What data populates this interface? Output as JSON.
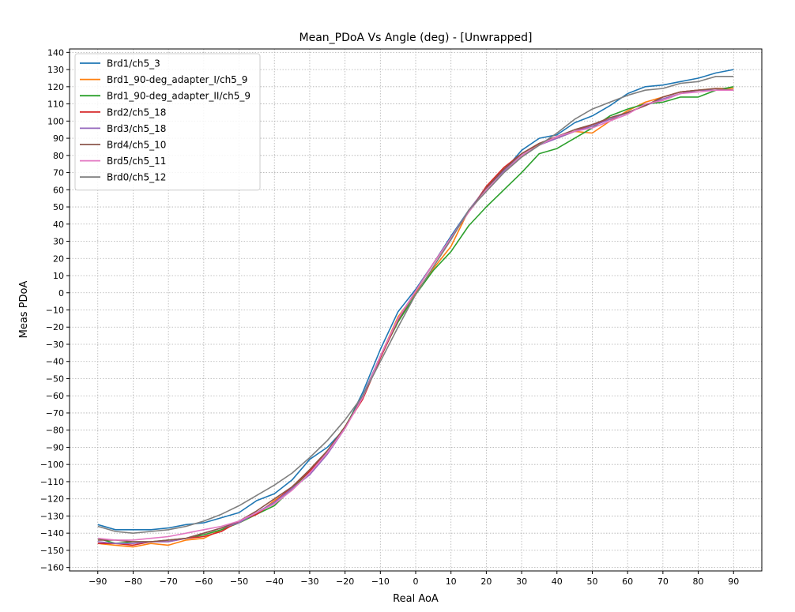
{
  "chart_data": {
    "type": "line",
    "title": "Mean_PDoA Vs Angle (deg)  - [Unwrapped]",
    "xlabel": "Real AoA",
    "ylabel": "Meas PDoA",
    "xlim": [
      -98,
      98
    ],
    "ylim": [
      -162,
      142
    ],
    "xticks": [
      -90,
      -80,
      -70,
      -60,
      -50,
      -40,
      -30,
      -20,
      -10,
      0,
      10,
      20,
      30,
      40,
      50,
      60,
      70,
      80,
      90
    ],
    "yticks": [
      140,
      130,
      120,
      110,
      100,
      90,
      80,
      70,
      60,
      50,
      40,
      30,
      20,
      10,
      0,
      -10,
      -20,
      -30,
      -40,
      -50,
      -60,
      -70,
      -80,
      -90,
      -100,
      -110,
      -120,
      -130,
      -140,
      -150,
      -160
    ],
    "xtick_labels": [
      "−90",
      "−80",
      "−70",
      "−60",
      "−50",
      "−40",
      "−30",
      "−20",
      "−10",
      "0",
      "10",
      "20",
      "30",
      "40",
      "50",
      "60",
      "70",
      "80",
      "90"
    ],
    "ytick_labels": [
      "140",
      "130",
      "120",
      "110",
      "100",
      "90",
      "80",
      "70",
      "60",
      "50",
      "40",
      "30",
      "20",
      "10",
      "0",
      "−10",
      "−20",
      "−30",
      "−40",
      "−50",
      "−60",
      "−70",
      "−80",
      "−90",
      "−100",
      "−110",
      "−120",
      "−130",
      "−140",
      "−150",
      "−160"
    ],
    "grid": true,
    "legend_position": "top-left",
    "x": [
      -90,
      -85,
      -80,
      -75,
      -70,
      -65,
      -60,
      -55,
      -50,
      -45,
      -40,
      -35,
      -30,
      -25,
      -20,
      -15,
      -10,
      -5,
      0,
      5,
      10,
      15,
      20,
      25,
      30,
      35,
      40,
      45,
      50,
      55,
      60,
      65,
      70,
      75,
      80,
      85,
      90
    ],
    "series": [
      {
        "name": "Brd1/ch5_3",
        "color": "#1f77b4",
        "values": [
          -135,
          -138,
          -138,
          -138,
          -137,
          -135,
          -134,
          -131,
          -128,
          -121,
          -117,
          -109,
          -97,
          -90,
          -79,
          -58,
          -33,
          -11,
          2,
          17,
          33,
          48,
          61,
          71,
          83,
          90,
          92,
          99,
          103,
          109,
          116,
          120,
          121,
          123,
          125,
          128,
          130
        ]
      },
      {
        "name": "Brd1_90-deg_adapter_I/ch5_9",
        "color": "#ff7f0e",
        "values": [
          -146,
          -147,
          -148,
          -146,
          -147,
          -144,
          -143,
          -138,
          -134,
          -129,
          -121,
          -114,
          -103,
          -92,
          -78,
          -61,
          -37,
          -14,
          0,
          14,
          27,
          48,
          61,
          72,
          79,
          87,
          90,
          94,
          93,
          100,
          106,
          111,
          114,
          117,
          118,
          119,
          119
        ]
      },
      {
        "name": "Brd1_90-deg_adapter_II/ch5_9",
        "color": "#2ca02c",
        "values": [
          -143,
          -146,
          -145,
          -145,
          -144,
          -143,
          -141,
          -138,
          -134,
          -129,
          -124,
          -114,
          -104,
          -92,
          -78,
          -60,
          -37,
          -17,
          -1,
          13,
          24,
          39,
          50,
          60,
          70,
          81,
          84,
          90,
          96,
          103,
          107,
          110,
          111,
          114,
          114,
          118,
          120
        ]
      },
      {
        "name": "Brd2/ch5_18",
        "color": "#d62728",
        "values": [
          -146,
          -146,
          -147,
          -145,
          -145,
          -143,
          -142,
          -139,
          -133,
          -129,
          -122,
          -113,
          -104,
          -93,
          -78,
          -62,
          -38,
          -16,
          1,
          17,
          32,
          47,
          62,
          73,
          81,
          87,
          91,
          94,
          98,
          101,
          105,
          109,
          114,
          117,
          118,
          118,
          118
        ]
      },
      {
        "name": "Brd3/ch5_18",
        "color": "#9467bd",
        "values": [
          -145,
          -146,
          -146,
          -145,
          -145,
          -143,
          -140,
          -137,
          -134,
          -128,
          -122,
          -114,
          -106,
          -94,
          -79,
          -60,
          -37,
          -15,
          1,
          17,
          32,
          48,
          61,
          71,
          80,
          86,
          90,
          94,
          97,
          101,
          105,
          109,
          113,
          116,
          118,
          118,
          118
        ]
      },
      {
        "name": "Brd4/ch5_10",
        "color": "#8c564b",
        "values": [
          -144,
          -144,
          -145,
          -145,
          -144,
          -143,
          -140,
          -137,
          -133,
          -127,
          -120,
          -113,
          -103,
          -92,
          -78,
          -61,
          -37,
          -16,
          1,
          17,
          32,
          47,
          61,
          72,
          81,
          87,
          91,
          95,
          98,
          102,
          105,
          109,
          114,
          117,
          118,
          119,
          118
        ]
      },
      {
        "name": "Brd5/ch5_11",
        "color": "#e377c2",
        "values": [
          -143,
          -144,
          -144,
          -143,
          -142,
          -140,
          -138,
          -136,
          -133,
          -128,
          -123,
          -115,
          -105,
          -93,
          -79,
          -61,
          -37,
          -15,
          1,
          17,
          32,
          47,
          60,
          70,
          80,
          86,
          91,
          94,
          96,
          100,
          104,
          110,
          112,
          116,
          117,
          118,
          118
        ]
      },
      {
        "name": "Brd0/ch5_12",
        "color": "#7f7f7f",
        "values": [
          -136,
          -139,
          -140,
          -139,
          -138,
          -136,
          -133,
          -129,
          -124,
          -118,
          -112,
          -105,
          -96,
          -86,
          -74,
          -60,
          -40,
          -20,
          -1,
          15,
          31,
          48,
          59,
          70,
          79,
          86,
          93,
          101,
          107,
          111,
          115,
          118,
          119,
          122,
          123,
          126,
          126
        ]
      }
    ]
  }
}
